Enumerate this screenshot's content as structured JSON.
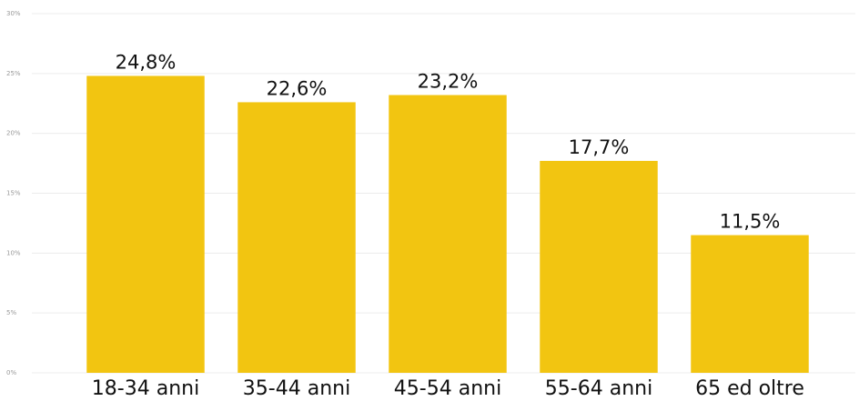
{
  "chart_data": {
    "type": "bar",
    "categories": [
      "18-34 anni",
      "35-44 anni",
      "45-54 anni",
      "55-64 anni",
      "65 ed oltre"
    ],
    "values": [
      24.8,
      22.6,
      23.2,
      17.7,
      11.5
    ],
    "value_labels": [
      "24,8%",
      "22,6%",
      "23,2%",
      "17,7%",
      "11,5%"
    ],
    "color": "#f2c511",
    "ylim": [
      0,
      30
    ],
    "yticks": [
      {
        "value": 0,
        "label": "0%"
      },
      {
        "value": 5,
        "label": "5%"
      },
      {
        "value": 10,
        "label": "10%"
      },
      {
        "value": 15,
        "label": "15%"
      },
      {
        "value": 20,
        "label": "20%"
      },
      {
        "value": 25,
        "label": "25%"
      },
      {
        "value": 30,
        "label": "30%"
      }
    ],
    "grid": true
  }
}
